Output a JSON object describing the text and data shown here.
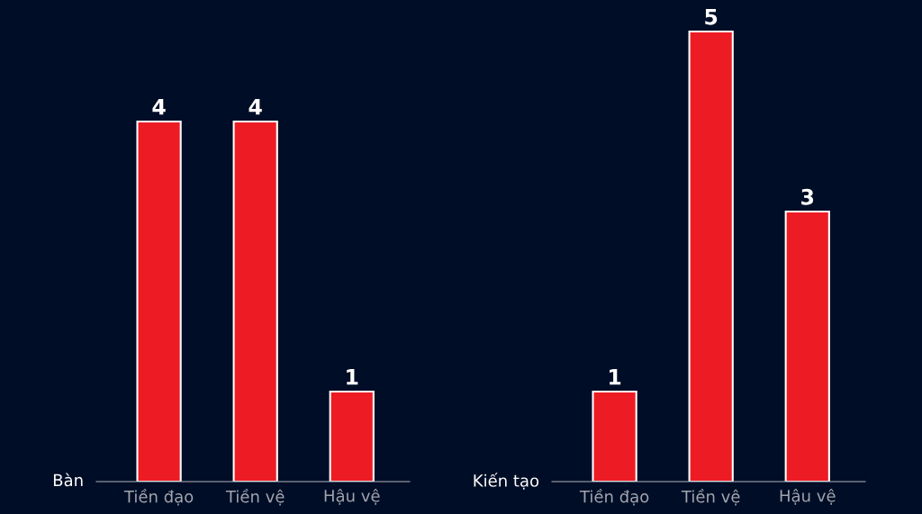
{
  "chart_data": [
    {
      "type": "bar",
      "ylabel": "Bàn",
      "categories": [
        "Tiền đạo",
        "Tiền vệ",
        "Hậu vệ"
      ],
      "values": [
        4,
        4,
        1
      ],
      "color": "#ed1c24",
      "data_labels": true,
      "grid": false,
      "legend": false
    },
    {
      "type": "bar",
      "ylabel": "Kiến tạo",
      "categories": [
        "Tiền đạo",
        "Tiền vệ",
        "Hậu vệ"
      ],
      "values": [
        1,
        5,
        3
      ],
      "color": "#ed1c24",
      "data_labels": true,
      "grid": false,
      "legend": false
    }
  ]
}
